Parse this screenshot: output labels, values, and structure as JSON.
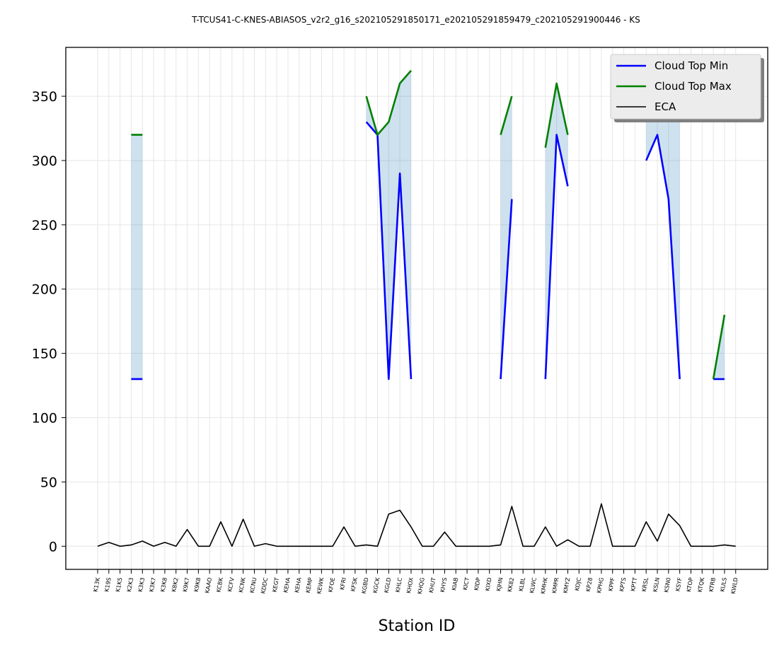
{
  "chart_data": {
    "type": "line",
    "title": "T-TCUS41-C-KNES-ABIASOS_v2r2_g16_s202105291850171_e202105291859479_c202105291900446 - KS",
    "xlabel": "Station ID",
    "ylabel": "",
    "ylim": [
      -18,
      388
    ],
    "yticks": [
      0,
      50,
      100,
      150,
      200,
      250,
      300,
      350
    ],
    "grid": true,
    "legend_position": "top-right",
    "categories": [
      "K13K",
      "K19S",
      "K1K5",
      "K2K3",
      "K3K3",
      "K3K7",
      "K3K8",
      "K8K2",
      "K9K7",
      "K9K8",
      "KAAO",
      "KCBK",
      "KCFV",
      "KCNK",
      "KCNU",
      "KDDC",
      "KEGT",
      "KEHA",
      "KEHA",
      "KEMP",
      "KEWK",
      "KFOE",
      "KFRI",
      "KFSK",
      "KGBD",
      "KGCK",
      "KGLD",
      "KHLC",
      "KHOX",
      "KHQG",
      "KHUT",
      "KHYS",
      "KIAB",
      "KICT",
      "KIDP",
      "KIXD",
      "KJHN",
      "KK82",
      "KLBL",
      "KLWC",
      "KMHK",
      "KMPR",
      "KMYZ",
      "KOJC",
      "KP28",
      "KPHG",
      "KPPF",
      "KPTS",
      "KPTT",
      "KRSL",
      "KSLN",
      "KSN0",
      "KSYF",
      "KTOP",
      "KTQK",
      "KTRB",
      "KULS",
      "KWLD"
    ],
    "series": [
      {
        "name": "Cloud Top Min",
        "color": "#0000ff",
        "values": [
          null,
          null,
          null,
          130,
          130,
          null,
          null,
          null,
          null,
          null,
          null,
          null,
          null,
          null,
          null,
          null,
          null,
          null,
          null,
          null,
          null,
          null,
          null,
          null,
          330,
          320,
          130,
          290,
          130,
          null,
          null,
          null,
          null,
          null,
          null,
          null,
          130,
          270,
          null,
          null,
          130,
          320,
          280,
          null,
          null,
          null,
          null,
          null,
          null,
          300,
          320,
          270,
          130,
          null,
          null,
          130,
          130,
          null
        ]
      },
      {
        "name": "Cloud Top Max",
        "color": "#008000",
        "values": [
          null,
          null,
          null,
          320,
          320,
          null,
          null,
          null,
          null,
          null,
          null,
          null,
          null,
          null,
          null,
          null,
          null,
          null,
          null,
          null,
          null,
          null,
          null,
          null,
          350,
          320,
          330,
          360,
          370,
          null,
          null,
          null,
          null,
          null,
          null,
          null,
          320,
          350,
          null,
          null,
          310,
          360,
          320,
          null,
          null,
          null,
          null,
          null,
          null,
          350,
          370,
          360,
          330,
          null,
          null,
          130,
          180,
          null
        ]
      },
      {
        "name": "ECA",
        "color": "#000000",
        "values": [
          0,
          3,
          0,
          1,
          4,
          0,
          3,
          0,
          13,
          0,
          0,
          19,
          0,
          21,
          0,
          2,
          0,
          0,
          0,
          0,
          0,
          0,
          15,
          0,
          1,
          0,
          25,
          28,
          15,
          0,
          0,
          11,
          0,
          0,
          0,
          0,
          1,
          31,
          0,
          0,
          15,
          0,
          5,
          0,
          0,
          33,
          0,
          0,
          0,
          19,
          4,
          25,
          16,
          0,
          0,
          0,
          1,
          0
        ]
      }
    ],
    "fill_color": "#1f77b4"
  }
}
